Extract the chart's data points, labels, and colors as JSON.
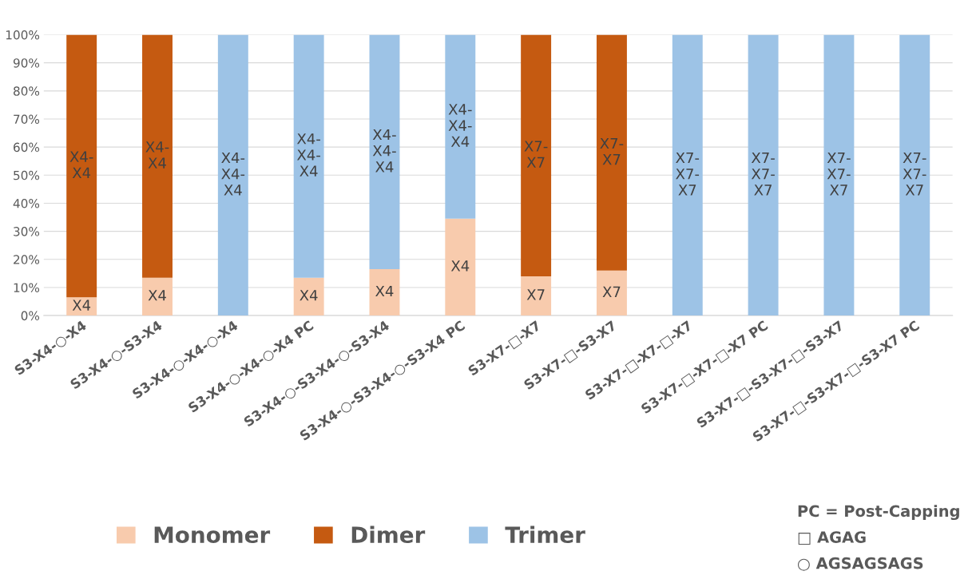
{
  "chart_data": {
    "type": "bar",
    "stacked": true,
    "categories": [
      "S3-X4-○-X4",
      "S3-X4-○-S3-X4",
      "S3-X4-○-X4-○-X4",
      "S3-X4-○-X4-○-X4 PC",
      "S3-X4-○-S3-X4-○-S3-X4",
      "S3-X4-○-S3-X4-○-S3-X4 PC",
      "S3-X7-□-X7",
      "S3-X7-□-S3-X7",
      "S3-X7-□-X7-□-X7",
      "S3-X7-□-X7-□-X7 PC",
      "S3-X7-□-S3-X7-□-S3-X7",
      "S3-X7-□-S3-X7-□-S3-X7 PC"
    ],
    "series": [
      {
        "name": "Monomer",
        "color": "#f8cbad",
        "values": [
          6.5,
          13.5,
          0,
          13.5,
          16.5,
          34.5,
          14,
          16,
          0,
          0,
          0,
          0
        ],
        "value_labels": [
          "X4",
          "X4",
          null,
          "X4",
          "X4",
          "X4",
          "X7",
          "X7",
          null,
          null,
          null,
          null
        ]
      },
      {
        "name": "Dimer",
        "color": "#c55a11",
        "values": [
          93.5,
          86.5,
          0,
          0,
          0,
          0,
          86,
          84,
          0,
          0,
          0,
          0
        ],
        "value_labels": [
          "X4-\nX4",
          "X4-\nX4",
          null,
          null,
          null,
          null,
          "X7-\nX7",
          "X7-\nX7",
          null,
          null,
          null,
          null
        ]
      },
      {
        "name": "Trimer",
        "color": "#9dc3e6",
        "values": [
          0,
          0,
          100,
          86.5,
          83.5,
          65.5,
          0,
          0,
          100,
          100,
          100,
          100
        ],
        "value_labels": [
          null,
          null,
          "X4-\nX4-\nX4",
          "X4-\nX4-\nX4",
          "X4-\nX4-\nX4",
          "X4-\nX4-\nX4",
          null,
          null,
          "X7-\nX7-\nX7",
          "X7-\nX7-\nX7",
          "X7-\nX7-\nX7",
          "X7-\nX7-\nX7"
        ]
      }
    ],
    "ylim": [
      0,
      100
    ],
    "yticks": [
      {
        "value": 0,
        "label": "0%"
      },
      {
        "value": 10,
        "label": "10%"
      },
      {
        "value": 20,
        "label": "20%"
      },
      {
        "value": 30,
        "label": "30%"
      },
      {
        "value": 40,
        "label": "40%"
      },
      {
        "value": 50,
        "label": "50%"
      },
      {
        "value": 60,
        "label": "60%"
      },
      {
        "value": 70,
        "label": "70%"
      },
      {
        "value": 80,
        "label": "80%"
      },
      {
        "value": 90,
        "label": "90%"
      },
      {
        "value": 100,
        "label": "100%"
      }
    ],
    "grid": "y",
    "legend": "bottom",
    "annotations": [
      "PC = Post-Capping",
      "□ AGAG",
      "○ AGSAGSAGS"
    ]
  }
}
